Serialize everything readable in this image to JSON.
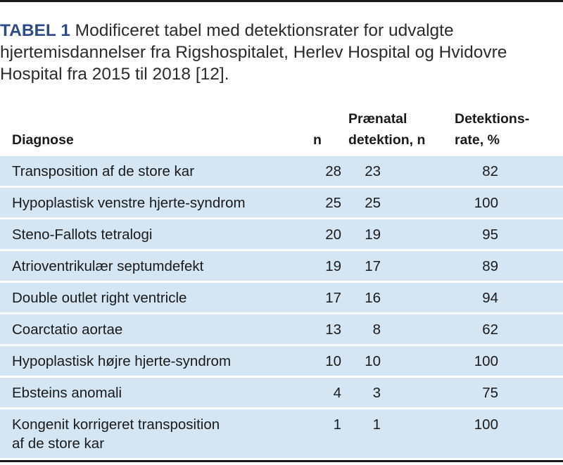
{
  "caption": {
    "label": "TABEL 1",
    "text": "Modificeret tabel med detektionsrater for udvalgte hjertemisdannelser fra Rigshospitalet, Herlev Hospital og Hvidovre Hospital fra 2015 til 2018 [12]."
  },
  "table": {
    "headers": {
      "diagnosis": "Diagnose",
      "n": "n",
      "prenatal_line1": "Prænatal",
      "prenatal_line2": "detektion, n",
      "rate_line1": "Detektions-",
      "rate_line2": "rate, %"
    },
    "rows": [
      {
        "diagnosis": "Transposition af de store kar",
        "n": "28",
        "prenatal": "23",
        "rate": "82"
      },
      {
        "diagnosis": "Hypoplastisk venstre hjerte-syndrom",
        "n": "25",
        "prenatal": "25",
        "rate": "100"
      },
      {
        "diagnosis": "Steno-Fallots tetralogi",
        "n": "20",
        "prenatal": "19",
        "rate": "95"
      },
      {
        "diagnosis": "Atrioventrikulær septumdefekt",
        "n": "19",
        "prenatal": "17",
        "rate": "89"
      },
      {
        "diagnosis": "Double outlet right ventricle",
        "n": "17",
        "prenatal": "16",
        "rate": "94"
      },
      {
        "diagnosis": "Coarctatio aortae",
        "n": "13",
        "prenatal": "8",
        "rate": "62"
      },
      {
        "diagnosis": "Hypoplastisk højre hjerte-syndrom",
        "n": "10",
        "prenatal": "10",
        "rate": "100"
      },
      {
        "diagnosis": "Ebsteins anomali",
        "n": "4",
        "prenatal": "3",
        "rate": "75"
      },
      {
        "diagnosis": "Kongenit korrigeret transposition",
        "diagnosis_line2": "af de store kar",
        "n": "1",
        "prenatal": "1",
        "rate": "100"
      }
    ]
  },
  "colors": {
    "row_shade": "#d4e6f4",
    "caption_label": "#2f4b87",
    "rule": "#1a1a1a"
  }
}
